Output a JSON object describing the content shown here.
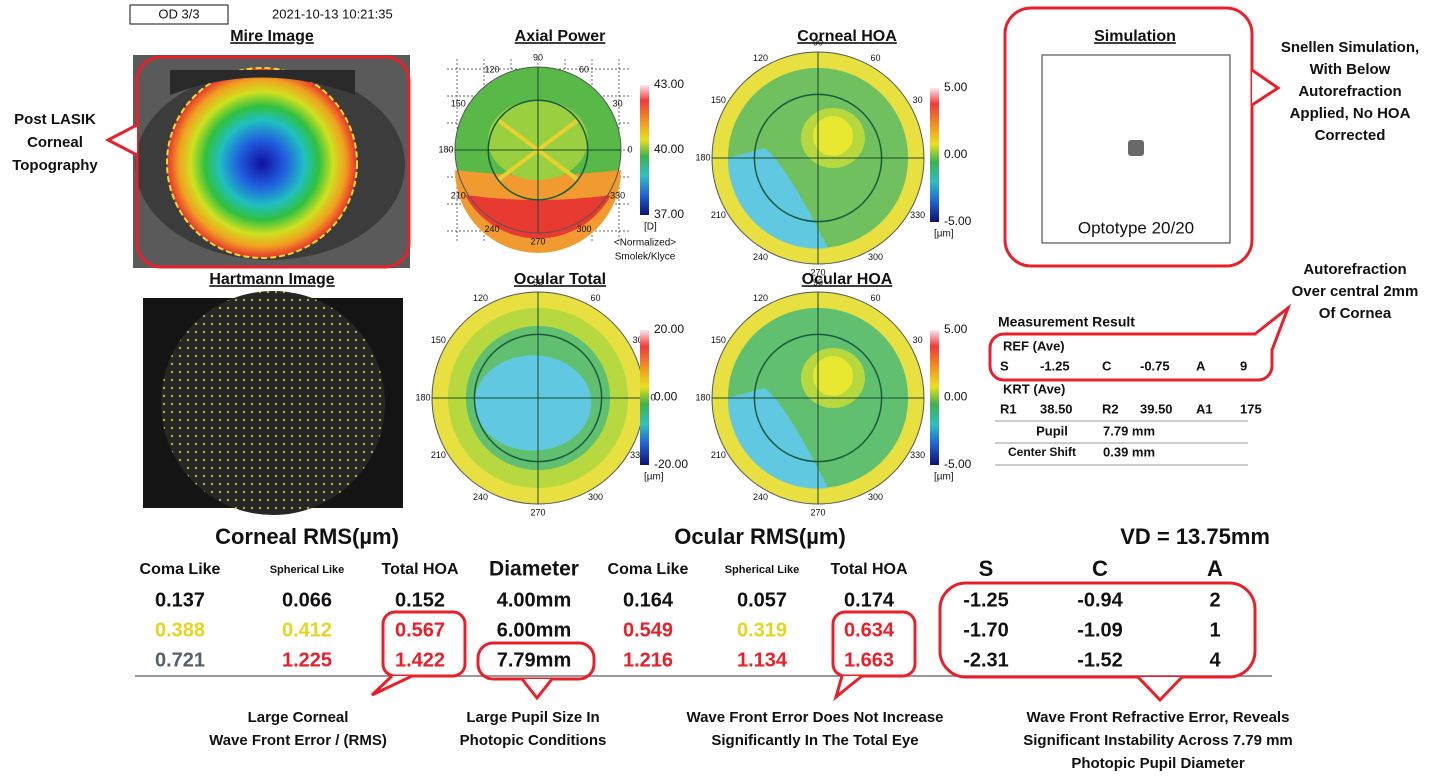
{
  "header": {
    "exam": "OD 3/3",
    "datetime": "2021-10-13 10:21:35"
  },
  "angles": [
    "90",
    "60",
    "30",
    "0",
    "330",
    "300",
    "270",
    "240",
    "210",
    "180",
    "150",
    "120"
  ],
  "mire": {
    "title": "Mire Image"
  },
  "hartmann": {
    "title": "Hartmann Image"
  },
  "axial": {
    "title": "Axial Power",
    "scale": [
      "43.00",
      "40.00",
      "37.00"
    ],
    "unit": "[D]",
    "note": [
      "<Normalized>",
      "Smolek/Klyce"
    ]
  },
  "corneal_hoa": {
    "title": "Corneal HOA",
    "scale": [
      "5.00",
      "0.00",
      "-5.00"
    ],
    "unit": "[µm]"
  },
  "ocular_total": {
    "title": "Ocular Total",
    "scale": [
      "20.00",
      "0.00",
      "-20.00"
    ],
    "unit": "[µm]"
  },
  "ocular_hoa": {
    "title": "Ocular HOA",
    "scale": [
      "5.00",
      "0.00",
      "-5.00"
    ],
    "unit": "[µm]"
  },
  "simulation": {
    "title": "Simulation",
    "optotype": "Optotype 20/20"
  },
  "measurement": {
    "title": "Measurement Result",
    "ref_label": "REF (Ave)",
    "ref": [
      "S",
      "-1.25",
      "C",
      "-0.75",
      "A",
      "9"
    ],
    "krt_label": "KRT (Ave)",
    "krt": [
      "R1",
      "38.50",
      "R2",
      "39.50",
      "A1",
      "175"
    ],
    "pupil": [
      "Pupil",
      "7.79 mm"
    ],
    "center_shift": [
      "Center Shift",
      "0.39 mm"
    ]
  },
  "rms": {
    "corneal_heading": "Corneal RMS(µm)",
    "ocular_heading": "Ocular RMS(µm)",
    "vd": "VD = 13.75mm",
    "headers": [
      "Coma Like",
      "Spherical Like",
      "Total HOA",
      "Diameter",
      "Coma Like",
      "Spherical Like",
      "Total HOA",
      "S",
      "C",
      "A"
    ],
    "rows": [
      [
        {
          "text": "0.137",
          "color": "#111111"
        },
        {
          "text": "0.066",
          "color": "#111111"
        },
        {
          "text": "0.152",
          "color": "#111111"
        },
        {
          "text": "4.00mm",
          "color": "#111111"
        },
        {
          "text": "0.164",
          "color": "#111111"
        },
        {
          "text": "0.057",
          "color": "#111111"
        },
        {
          "text": "0.174",
          "color": "#111111"
        },
        {
          "text": "-1.25",
          "color": "#111111"
        },
        {
          "text": "-0.94",
          "color": "#111111"
        },
        {
          "text": "2",
          "color": "#111111"
        }
      ],
      [
        {
          "text": "0.388",
          "color": "#e6d51e"
        },
        {
          "text": "0.412",
          "color": "#e6d51e"
        },
        {
          "text": "0.567",
          "color": "#e8202a"
        },
        {
          "text": "6.00mm",
          "color": "#111111"
        },
        {
          "text": "0.549",
          "color": "#e8202a"
        },
        {
          "text": "0.319",
          "color": "#e6d51e"
        },
        {
          "text": "0.634",
          "color": "#e8202a"
        },
        {
          "text": "-1.70",
          "color": "#111111"
        },
        {
          "text": "-1.09",
          "color": "#111111"
        },
        {
          "text": "1",
          "color": "#111111"
        }
      ],
      [
        {
          "text": "0.721",
          "color": "#56606a"
        },
        {
          "text": "1.225",
          "color": "#e8202a"
        },
        {
          "text": "1.422",
          "color": "#e8202a"
        },
        {
          "text": "7.79mm",
          "color": "#111111"
        },
        {
          "text": "1.216",
          "color": "#e8202a"
        },
        {
          "text": "1.134",
          "color": "#e8202a"
        },
        {
          "text": "1.663",
          "color": "#e8202a"
        },
        {
          "text": "-2.31",
          "color": "#111111"
        },
        {
          "text": "-1.52",
          "color": "#111111"
        },
        {
          "text": "4",
          "color": "#111111"
        }
      ]
    ]
  },
  "annotations": {
    "post_lasik": [
      "Post LASIK",
      "Corneal",
      "Topography"
    ],
    "snellen": [
      "Snellen Simulation,",
      "With Below",
      "Autorefraction",
      "Applied, No HOA",
      "Corrected"
    ],
    "autorefraction": [
      "Autorefraction",
      "Over central 2mm",
      "Of Cornea"
    ],
    "corneal_wfe": [
      "Large Corneal",
      "Wave Front Error / (RMS)"
    ],
    "pupil": [
      "Large Pupil Size In",
      "Photopic Conditions"
    ],
    "wfe_total": [
      "Wave Front Error Does Not Increase",
      "Significantly In The Total Eye"
    ],
    "refractive": [
      "Wave Front Refractive Error, Reveals",
      "Significant Instability Across 7.79 mm",
      "Photopic Pupil Diameter"
    ]
  }
}
